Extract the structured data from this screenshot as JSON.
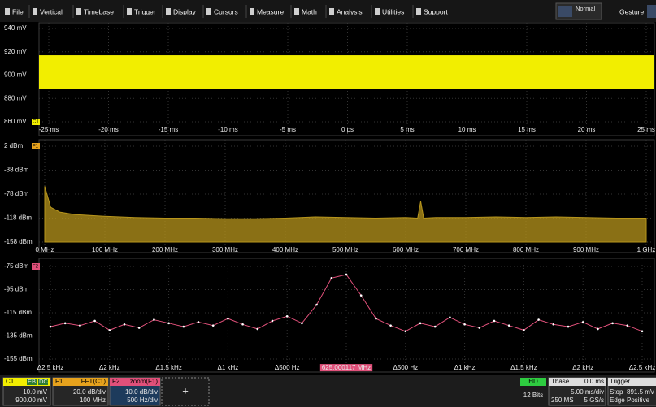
{
  "menu": {
    "items": [
      "File",
      "Vertical",
      "Timebase",
      "Trigger",
      "Display",
      "Cursors",
      "Measure",
      "Math",
      "Analysis",
      "Utilities",
      "Support"
    ],
    "mode": "Normal",
    "gesture": "Gesture"
  },
  "chart_data": [
    {
      "type": "band",
      "name": "C1",
      "color": "#f2ee00",
      "trace_max": 917,
      "trace_min": 888,
      "ylim": [
        860,
        940
      ],
      "yticks": [
        {
          "value": 940,
          "label": "940 mV"
        },
        {
          "value": 920,
          "label": "920 mV"
        },
        {
          "value": 900,
          "label": "900 mV"
        },
        {
          "value": 880,
          "label": "880 mV"
        },
        {
          "value": 860,
          "label": "860 mV"
        }
      ],
      "xlim": [
        -25,
        25
      ],
      "xticks": [
        {
          "value": -25,
          "label": "-25 ms"
        },
        {
          "value": -20,
          "label": "-20 ms"
        },
        {
          "value": -15,
          "label": "-15 ms"
        },
        {
          "value": -10,
          "label": "-10 ms"
        },
        {
          "value": -5,
          "label": "-5 ms"
        },
        {
          "value": 0,
          "label": "0 ps"
        },
        {
          "value": 5,
          "label": "5 ms"
        },
        {
          "value": 10,
          "label": "10 ms"
        },
        {
          "value": 15,
          "label": "15 ms"
        },
        {
          "value": 20,
          "label": "20 ms"
        },
        {
          "value": 25,
          "label": "25 ms"
        }
      ]
    },
    {
      "type": "area",
      "name": "F1",
      "color": "#b8961c",
      "x": [
        0,
        10,
        25,
        50,
        100,
        150,
        200,
        250,
        300,
        350,
        400,
        450,
        500,
        550,
        600,
        620,
        625,
        630,
        650,
        700,
        750,
        800,
        850,
        900,
        950,
        1000
      ],
      "values": [
        -65,
        -100,
        -108,
        -112,
        -115,
        -117,
        -118,
        -118,
        -119,
        -119,
        -118,
        -116,
        -117,
        -118,
        -117,
        -118,
        -90,
        -118,
        -117,
        -117,
        -116,
        -117,
        -116,
        -117,
        -118,
        -118
      ],
      "ylim": [
        -158,
        2
      ],
      "yticks": [
        {
          "value": 2,
          "label": "2 dBm"
        },
        {
          "value": -38,
          "label": "-38 dBm"
        },
        {
          "value": -78,
          "label": "-78 dBm"
        },
        {
          "value": -118,
          "label": "-118 dBm"
        },
        {
          "value": -158,
          "label": "-158 dBm"
        }
      ],
      "xlim": [
        0,
        1000
      ],
      "xticks": [
        {
          "value": 0,
          "label": "0 MHz"
        },
        {
          "value": 100,
          "label": "100 MHz"
        },
        {
          "value": 200,
          "label": "200 MHz"
        },
        {
          "value": 300,
          "label": "300 MHz"
        },
        {
          "value": 400,
          "label": "400 MHz"
        },
        {
          "value": 500,
          "label": "500 MHz"
        },
        {
          "value": 600,
          "label": "600 MHz"
        },
        {
          "value": 700,
          "label": "700 MHz"
        },
        {
          "value": 800,
          "label": "800 MHz"
        },
        {
          "value": 900,
          "label": "900 MHz"
        },
        {
          "value": 1000,
          "label": "1 GHz"
        }
      ]
    },
    {
      "type": "line",
      "name": "F2",
      "color": "#e0507a",
      "x": [
        -2500,
        -2375,
        -2250,
        -2125,
        -2000,
        -1875,
        -1750,
        -1625,
        -1500,
        -1375,
        -1250,
        -1125,
        -1000,
        -875,
        -750,
        -625,
        -500,
        -375,
        -250,
        -125,
        0,
        125,
        250,
        375,
        500,
        625,
        750,
        875,
        1000,
        1125,
        1250,
        1375,
        1500,
        1625,
        1750,
        1875,
        2000,
        2125,
        2250,
        2375,
        2500
      ],
      "values": [
        -127,
        -124,
        -126,
        -122,
        -130,
        -125,
        -128,
        -121,
        -124,
        -127,
        -123,
        -126,
        -120,
        -125,
        -129,
        -122,
        -118,
        -124,
        -108,
        -85,
        -82,
        -100,
        -120,
        -126,
        -131,
        -124,
        -127,
        -119,
        -125,
        -128,
        -122,
        -126,
        -130,
        -121,
        -125,
        -127,
        -123,
        -129,
        -124,
        -126,
        -131
      ],
      "ylim": [
        -155,
        -75
      ],
      "yticks": [
        {
          "value": -75,
          "label": "-75 dBm"
        },
        {
          "value": -95,
          "label": "-95 dBm"
        },
        {
          "value": -115,
          "label": "-115 dBm"
        },
        {
          "value": -135,
          "label": "-135 dBm"
        },
        {
          "value": -155,
          "label": "-155 dBm"
        }
      ],
      "xlim": [
        -2500,
        2500
      ],
      "xticks": [
        {
          "value": -2500,
          "label": "Δ2.5 kHz"
        },
        {
          "value": -2000,
          "label": "Δ2 kHz"
        },
        {
          "value": -1500,
          "label": "Δ1.5 kHz"
        },
        {
          "value": -1000,
          "label": "Δ1 kHz"
        },
        {
          "value": -500,
          "label": "Δ500 Hz"
        },
        {
          "value": 0,
          "label": "625.000117 MHz"
        },
        {
          "value": 500,
          "label": "Δ500 Hz"
        },
        {
          "value": 1000,
          "label": "Δ1 kHz"
        },
        {
          "value": 1500,
          "label": "Δ1.5 kHz"
        },
        {
          "value": 2000,
          "label": "Δ2 kHz"
        },
        {
          "value": 2500,
          "label": "Δ2.5 kHz"
        }
      ]
    }
  ],
  "status": {
    "c1": {
      "label": "C1",
      "flags": [
        "EB",
        "DC"
      ],
      "scale": "10.0 mV",
      "offset": "900.00 mV"
    },
    "f1": {
      "label": "F1",
      "name": "FFT(C1)",
      "scale": "20.0 dB/div",
      "span": "100 MHz"
    },
    "f2": {
      "label": "F2",
      "name": "zoom(F1)",
      "scale": "10.0 dB/div",
      "span": "500 Hz/div"
    },
    "add": "+",
    "hd": "HD",
    "bits": "12 Bits",
    "timebase": {
      "label": "Tbase",
      "delay": "0.0 ms",
      "div": "5.00 ms/div",
      "samples": "250 MS",
      "rate": "5 GS/s"
    },
    "trigger": {
      "label": "Trigger",
      "mode": "Stop",
      "level": "891.5 mV",
      "type": "Edge",
      "slope": "Positive"
    }
  }
}
